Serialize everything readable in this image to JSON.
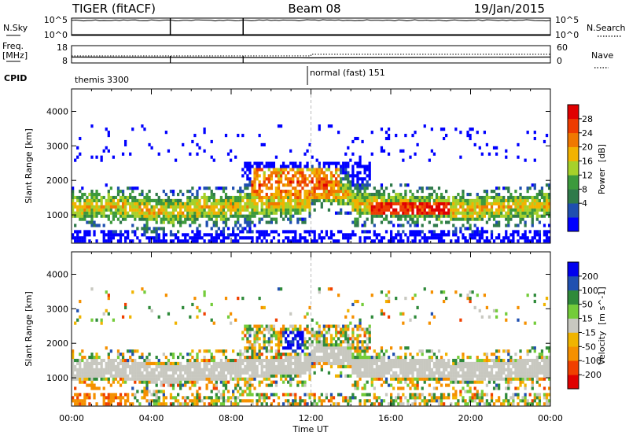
{
  "header": {
    "radar": "TIGER (fitACF)",
    "beam": "Beam 08",
    "date": "19/Jan/2015"
  },
  "top_panels": {
    "nsky_label": "N.Sky",
    "nsearch_label": "N.Search",
    "count_ticks": [
      "10^5",
      "10^0"
    ],
    "freq_label": "Freq.",
    "freq_unit": "[MHz]",
    "freq_ticks": [
      "18",
      "8"
    ],
    "nave_label": "Nave",
    "nave_ticks": [
      "60",
      "0"
    ],
    "cpid_label": "CPID",
    "cpid_segments": [
      {
        "name": "themis 3300",
        "start_hour": 0
      },
      {
        "name": "normal (fast) 151",
        "start_hour": 12
      }
    ],
    "dropout_hours": [
      4.95,
      8.6
    ]
  },
  "chart_data": [
    {
      "type": "heatmap",
      "title": "",
      "parameter": "Power",
      "unit": "[dB]",
      "xlabel": "Time UT",
      "ylabel": "Slant Range [km]",
      "x_ticks": [
        "00:00",
        "04:00",
        "08:00",
        "12:00",
        "16:00",
        "20:00",
        "00:00"
      ],
      "xlim_hours": [
        0,
        24
      ],
      "y_ticks": [
        1000,
        2000,
        3000,
        4000
      ],
      "ylim_km": [
        180,
        4650
      ],
      "colorbar_ticks": [
        "28",
        "24",
        "20",
        "16",
        "12",
        "8",
        "4"
      ],
      "colorbar_range": [
        0,
        32
      ],
      "colors": [
        "#0000ff",
        "#1f4fb0",
        "#2f7a4a",
        "#3c9a3c",
        "#a6d12a",
        "#f2b200",
        "#f07800",
        "#ee3c00",
        "#e00000"
      ]
    },
    {
      "type": "heatmap",
      "title": "",
      "parameter": "Velocity",
      "unit": "[m s^-1]",
      "xlabel": "Time UT",
      "ylabel": "Slant Range [km]",
      "x_ticks": [
        "00:00",
        "04:00",
        "08:00",
        "12:00",
        "16:00",
        "20:00",
        "00:00"
      ],
      "xlim_hours": [
        0,
        24
      ],
      "y_ticks": [
        1000,
        2000,
        3000,
        4000
      ],
      "ylim_km": [
        180,
        4650
      ],
      "colorbar_ticks": [
        "200",
        "100",
        "50",
        "15",
        "-15",
        "-50",
        "-100",
        "-200"
      ],
      "colorbar_range": [
        -250,
        250
      ],
      "colors": [
        "#e00000",
        "#f04000",
        "#f59000",
        "#f0b400",
        "#c8c8c0",
        "#74cc3a",
        "#2f8a3a",
        "#2050b0",
        "#0000ee"
      ]
    }
  ]
}
